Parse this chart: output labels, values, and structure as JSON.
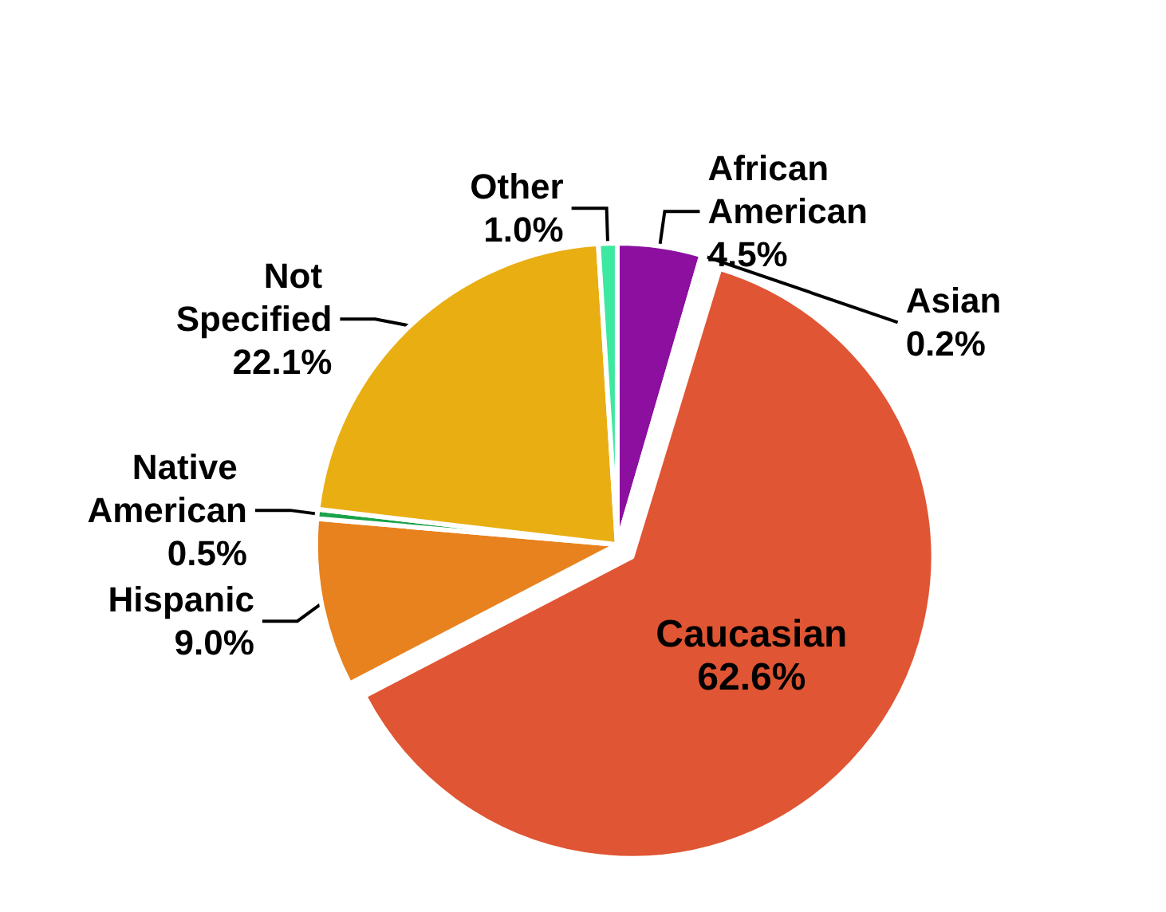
{
  "chart_data": {
    "type": "pie",
    "categories": [
      "African American",
      "Asian",
      "Caucasian",
      "Hispanic",
      "Native American",
      "Not Specified",
      "Other"
    ],
    "values": [
      4.5,
      0.2,
      62.6,
      9.0,
      0.5,
      22.1,
      1.0
    ],
    "colors": [
      "#8c0fa0",
      "#e8a020",
      "#e05533",
      "#e8821e",
      "#1aa34a",
      "#e9ae12",
      "#3de8a0"
    ],
    "value_labels": [
      "4.5%",
      "0.2%",
      "62.6%",
      "9.0%",
      "0.5%",
      "22.1%",
      "1.0%"
    ],
    "legend": false
  }
}
